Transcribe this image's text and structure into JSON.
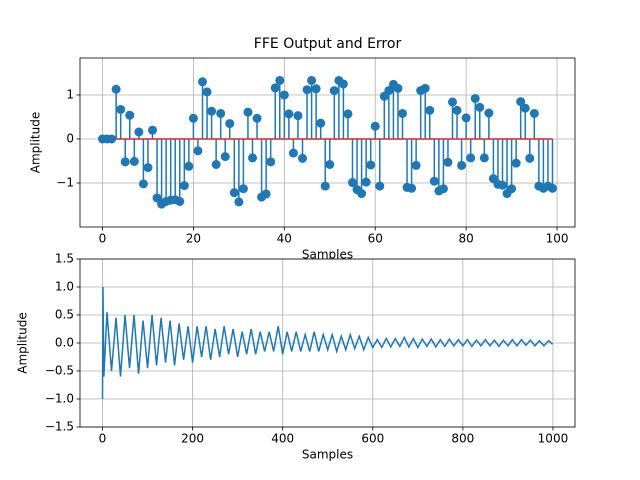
{
  "chart_data": [
    {
      "type": "stem",
      "title": "FFE Output and Error",
      "xlabel": "Samples",
      "ylabel": "Amplitude",
      "color": "#1f77b4",
      "baseline_color": "#d62728",
      "grid": true,
      "xlim": [
        -4.95,
        103.95
      ],
      "ylim": [
        -2.0,
        1.84
      ],
      "xticks": [
        0,
        20,
        40,
        60,
        80,
        100
      ],
      "yticks": [
        {
          "value": -1,
          "label": "−1"
        },
        0,
        1
      ],
      "x": [
        0,
        1,
        2,
        3,
        4,
        5,
        6,
        7,
        8,
        9,
        10,
        11,
        12,
        13,
        14,
        15,
        16,
        17,
        18,
        19,
        20,
        21,
        22,
        23,
        24,
        25,
        26,
        27,
        28,
        29,
        30,
        31,
        32,
        33,
        34,
        35,
        36,
        37,
        38,
        39,
        40,
        41,
        42,
        43,
        44,
        45,
        46,
        47,
        48,
        49,
        50,
        51,
        52,
        53,
        54,
        55,
        56,
        57,
        58,
        59,
        60,
        61,
        62,
        63,
        64,
        65,
        66,
        67,
        68,
        69,
        70,
        71,
        72,
        73,
        74,
        75,
        76,
        77,
        78,
        79,
        80,
        81,
        82,
        83,
        84,
        85,
        86,
        87,
        88,
        89,
        90,
        91,
        92,
        93,
        94,
        95,
        96,
        97,
        98,
        99
      ],
      "values": [
        0,
        0,
        0,
        1.13,
        0.67,
        -0.52,
        0.54,
        -0.51,
        0.16,
        -1.02,
        -0.65,
        0.2,
        -1.34,
        -1.48,
        -1.42,
        -1.39,
        -1.38,
        -1.42,
        -1.06,
        -0.62,
        0.47,
        -0.27,
        1.3,
        1.07,
        0.63,
        -0.58,
        0.58,
        -0.4,
        0.35,
        -1.22,
        -1.43,
        -1.13,
        0.61,
        -0.43,
        0.47,
        -1.32,
        -1.25,
        -0.52,
        1.16,
        1.33,
        1.0,
        0.57,
        -0.32,
        0.53,
        -0.44,
        1.12,
        1.33,
        1.14,
        0.36,
        -1.07,
        -0.58,
        1.1,
        1.33,
        1.25,
        0.57,
        -0.99,
        -1.15,
        -1.24,
        -0.98,
        -0.59,
        0.29,
        -1.07,
        0.97,
        1.1,
        1.24,
        1.15,
        0.58,
        -1.1,
        -1.12,
        -0.6,
        1.1,
        1.15,
        0.65,
        -0.96,
        -1.18,
        -1.13,
        -0.53,
        0.84,
        0.65,
        -0.6,
        0.48,
        -0.43,
        0.92,
        0.72,
        -0.43,
        0.59,
        -0.9,
        -1.03,
        -1.05,
        -1.24,
        -1.13,
        -0.55,
        0.85,
        0.7,
        -0.44,
        0.58,
        -1.07,
        -1.12,
        -1.07,
        -1.12
      ]
    },
    {
      "type": "line",
      "xlabel": "Samples",
      "ylabel": "Amplitude",
      "color": "#1f77b4",
      "grid": true,
      "xlim": [
        -49.95,
        1048.95
      ],
      "ylim": [
        -1.5,
        1.5
      ],
      "xticks": [
        0,
        200,
        400,
        600,
        800,
        1000
      ],
      "yticks": [
        {
          "value": -1.5,
          "label": "−1.5"
        },
        {
          "value": -1.0,
          "label": "−1.0"
        },
        {
          "value": -0.5,
          "label": "−0.5"
        },
        {
          "value": 0,
          "label": "0.0"
        },
        0.5,
        {
          "value": 1.0,
          "label": "1.0"
        },
        1.5
      ],
      "x": [
        0,
        1,
        3,
        10,
        20,
        30,
        40,
        50,
        60,
        70,
        80,
        90,
        100,
        110,
        120,
        130,
        140,
        150,
        160,
        170,
        180,
        190,
        200,
        210,
        220,
        230,
        240,
        250,
        260,
        270,
        280,
        290,
        300,
        310,
        320,
        330,
        340,
        350,
        360,
        370,
        380,
        390,
        400,
        410,
        420,
        430,
        440,
        450,
        460,
        470,
        480,
        490,
        500,
        510,
        520,
        530,
        540,
        550,
        560,
        570,
        580,
        590,
        600,
        610,
        620,
        630,
        640,
        650,
        660,
        670,
        680,
        690,
        700,
        710,
        720,
        730,
        740,
        750,
        760,
        770,
        780,
        790,
        800,
        810,
        820,
        830,
        840,
        850,
        860,
        870,
        880,
        890,
        900,
        910,
        920,
        930,
        940,
        950,
        960,
        970,
        980,
        990,
        999
      ],
      "values": [
        -1.0,
        1.0,
        -0.6,
        0.55,
        -0.5,
        0.45,
        -0.6,
        0.5,
        -0.45,
        0.5,
        -0.55,
        0.4,
        -0.45,
        0.5,
        -0.4,
        0.45,
        -0.35,
        0.4,
        -0.4,
        0.35,
        -0.3,
        0.3,
        -0.35,
        0.3,
        -0.25,
        0.3,
        -0.3,
        0.25,
        -0.25,
        0.3,
        -0.2,
        0.25,
        -0.25,
        0.2,
        -0.2,
        0.25,
        -0.2,
        0.2,
        -0.15,
        0.2,
        -0.15,
        0.3,
        -0.2,
        0.2,
        -0.15,
        0.2,
        -0.15,
        0.15,
        -0.15,
        0.2,
        -0.15,
        0.15,
        -0.12,
        0.15,
        -0.15,
        0.12,
        -0.12,
        0.15,
        -0.1,
        0.12,
        -0.12,
        0.1,
        -0.08,
        0.06,
        -0.08,
        0.08,
        -0.07,
        0.08,
        -0.06,
        0.1,
        -0.07,
        0.08,
        -0.08,
        0.07,
        -0.06,
        0.07,
        -0.07,
        0.06,
        -0.06,
        0.07,
        -0.05,
        0.06,
        -0.05,
        0.06,
        -0.06,
        0.05,
        -0.05,
        0.06,
        -0.05,
        0.05,
        -0.06,
        0.05,
        -0.05,
        0.06,
        -0.05,
        0.06,
        -0.04,
        0.05,
        -0.05,
        0.04,
        -0.05,
        0.04,
        -0.02
      ]
    }
  ]
}
